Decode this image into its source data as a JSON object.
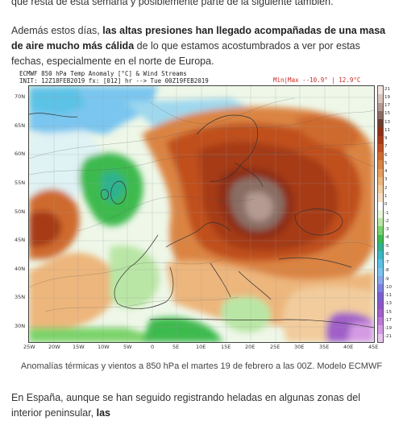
{
  "article": {
    "intro_fragment": "que resta de esta semana y posiblemente parte de la siguiente también.",
    "para2": {
      "lead": "Además estos días, ",
      "bold": "las altas presiones han llegado acompañadas de una masa de aire mucho más cálida",
      "tail": " de lo que estamos acostumbrados a ver por estas fechas, especialmente en el norte de Europa."
    },
    "para3": {
      "lead": "En España, aunque se han seguido registrando heladas en algunas zonas del interior peninsular, ",
      "bold": "las"
    }
  },
  "figure": {
    "title": "ECMWF 850 hPa Temp Anomaly [°C] & Wind Streams",
    "init": "INIT: 12Z18FEB2019 fx: [012] hr --> Tue 00Z19FEB2019",
    "minmax": "Min|Max --10.9° | 12.9°C",
    "caption": "Anomalías térmicas y vientos a 850 hPa el martes 19 de febrero a las 00Z. Modelo ECMWF"
  },
  "map": {
    "lat_ticks": [
      "70N",
      "65N",
      "60N",
      "55N",
      "50N",
      "45N",
      "40N",
      "35N",
      "30N"
    ],
    "lon_ticks": [
      "25W",
      "20W",
      "15W",
      "10W",
      "5W",
      "0",
      "5E",
      "10E",
      "15E",
      "20E",
      "25E",
      "30E",
      "35E",
      "40E",
      "45E"
    ],
    "lat_range": [
      27,
      72
    ],
    "lon_range": [
      -25,
      45
    ],
    "colorbar": [
      {
        "label": "21",
        "color": "#f2e4de"
      },
      {
        "label": "19",
        "color": "#d9c4bc"
      },
      {
        "label": "17",
        "color": "#b49a90"
      },
      {
        "label": "15",
        "color": "#8a6d64"
      },
      {
        "label": "13",
        "color": "#6b3d2e"
      },
      {
        "label": "11",
        "color": "#8e2e16"
      },
      {
        "label": "9",
        "color": "#a63a17"
      },
      {
        "label": "7",
        "color": "#c04f1f"
      },
      {
        "label": "6",
        "color": "#cf6a2e"
      },
      {
        "label": "5",
        "color": "#db8443"
      },
      {
        "label": "4",
        "color": "#e59d5d"
      },
      {
        "label": "3",
        "color": "#edb67c"
      },
      {
        "label": "2",
        "color": "#f2cc9d"
      },
      {
        "label": "1",
        "color": "#f6dfc1"
      },
      {
        "label": "0",
        "color": "#ffffff"
      },
      {
        "label": "-1",
        "color": "#e8f6dc"
      },
      {
        "label": "-2",
        "color": "#b9e6a5"
      },
      {
        "label": "-3",
        "color": "#7bd36b"
      },
      {
        "label": "-4",
        "color": "#3cba4e"
      },
      {
        "label": "-5",
        "color": "#2fb28e"
      },
      {
        "label": "-6",
        "color": "#38b7c4"
      },
      {
        "label": "-7",
        "color": "#5bc2e6"
      },
      {
        "label": "-8",
        "color": "#7ac6f0"
      },
      {
        "label": "-9",
        "color": "#8aa8ec"
      },
      {
        "label": "-10",
        "color": "#7d80e0"
      },
      {
        "label": "-11",
        "color": "#7a5fd0"
      },
      {
        "label": "-13",
        "color": "#8d55c8"
      },
      {
        "label": "-15",
        "color": "#a060c8"
      },
      {
        "label": "-17",
        "color": "#bb78d6"
      },
      {
        "label": "-19",
        "color": "#d49ae3"
      },
      {
        "label": "-21",
        "color": "#e8c4ef"
      }
    ]
  }
}
